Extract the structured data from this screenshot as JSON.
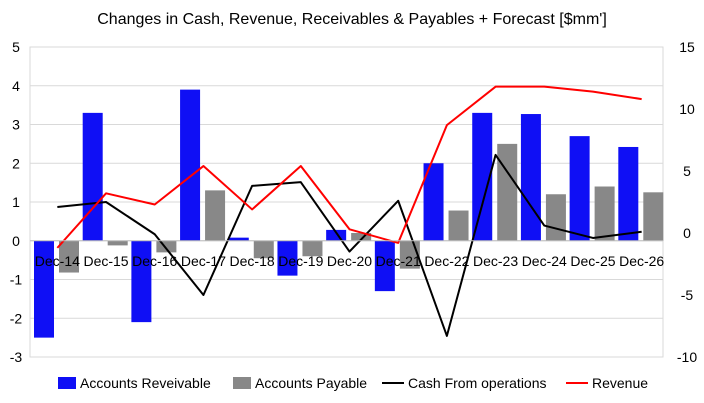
{
  "chart_data": {
    "type": "bar",
    "title": "Changes in Cash, Revenue, Receivables & Payables + Forecast [$mm']",
    "categories": [
      "Dec-14",
      "Dec-15",
      "Dec-16",
      "Dec-17",
      "Dec-18",
      "Dec-19",
      "Dec-20",
      "Dec-21",
      "Dec-22",
      "Dec-23",
      "Dec-24",
      "Dec-25",
      "Dec-26"
    ],
    "y_left": {
      "lim": [
        -3,
        5
      ],
      "ticks": [
        "-3",
        "-2",
        "-1",
        "0",
        "1",
        "2",
        "3",
        "4",
        "5"
      ]
    },
    "y_right": {
      "lim": [
        -10,
        15
      ],
      "ticks": [
        "-10",
        "-5",
        "0",
        "5",
        "10",
        "15"
      ]
    },
    "grid": true,
    "legend_position": "bottom",
    "series": [
      {
        "name": "Accounts Reveivable",
        "kind": "bar",
        "axis": "left",
        "color": "#0f0ff5",
        "values": [
          -2.5,
          3.3,
          -2.1,
          3.9,
          0.08,
          -0.9,
          0.28,
          -1.3,
          2.0,
          3.3,
          3.27,
          2.7,
          2.42
        ]
      },
      {
        "name": "Accounts Payable",
        "kind": "bar",
        "axis": "left",
        "color": "#888888",
        "values": [
          -0.82,
          -0.12,
          -0.3,
          1.3,
          -0.45,
          -0.4,
          0.2,
          -0.72,
          0.78,
          2.5,
          1.2,
          1.4,
          1.25
        ]
      },
      {
        "name": "Cash From operations",
        "kind": "line",
        "axis": "right",
        "color": "#000000",
        "values": [
          2.1,
          2.5,
          -0.1,
          -5.0,
          3.8,
          4.1,
          -1.5,
          2.6,
          -8.3,
          6.3,
          0.6,
          -0.4,
          0.1
        ]
      },
      {
        "name": "Revenue",
        "kind": "line",
        "axis": "right",
        "color": "#ff0000",
        "values": [
          -1.2,
          3.2,
          2.3,
          5.4,
          1.9,
          5.4,
          0.3,
          -0.8,
          8.7,
          11.8,
          11.8,
          11.4,
          10.8
        ]
      }
    ]
  }
}
